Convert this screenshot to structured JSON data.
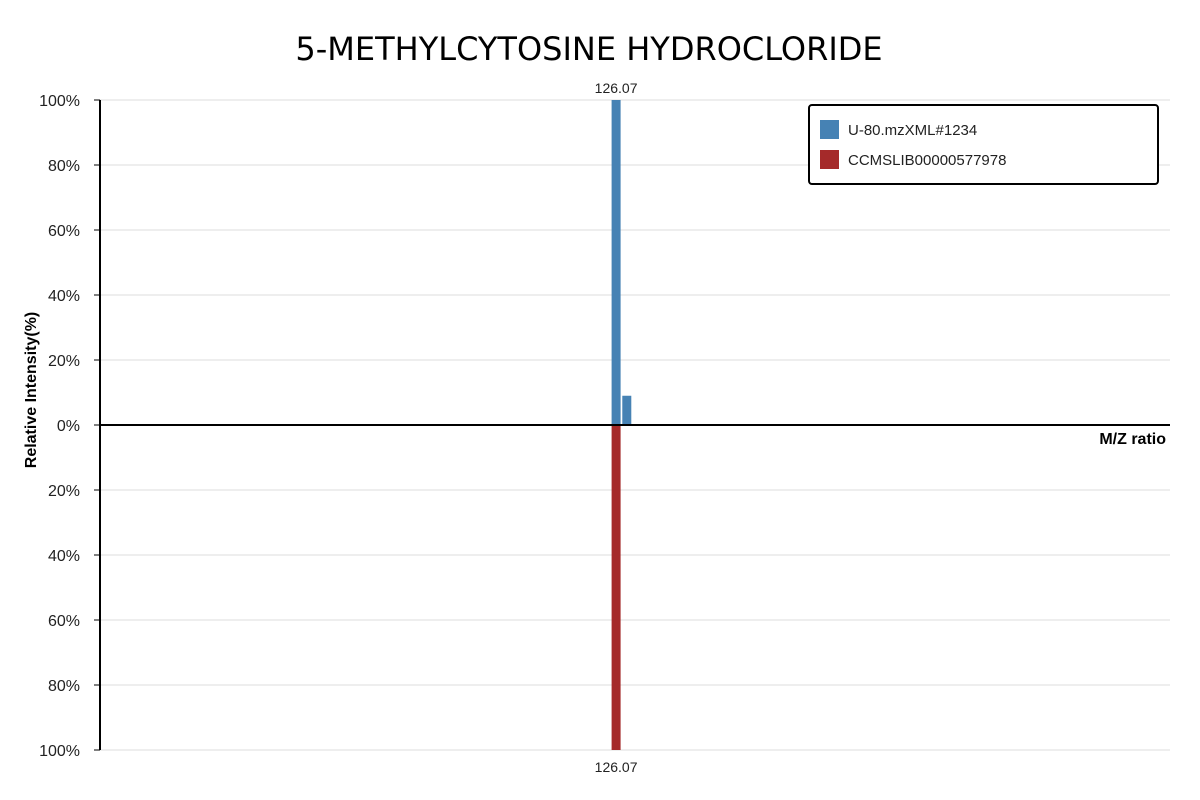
{
  "chart_data": {
    "type": "bar",
    "title": "5-METHYLCYTOSINE HYDROCLORIDE",
    "xlabel": "M/Z ratio",
    "ylabel": "Relative Intensity(%)",
    "ylim": [
      -100,
      100
    ],
    "y_ticks": [
      "100%",
      "80%",
      "60%",
      "40%",
      "20%",
      "0%",
      "20%",
      "40%",
      "60%",
      "80%",
      "100%"
    ],
    "y_tick_values": [
      100,
      80,
      60,
      40,
      20,
      0,
      -20,
      -40,
      -60,
      -80,
      -100
    ],
    "xlim": [
      111.6,
      141.6
    ],
    "grid": true,
    "legend_position": "top-right",
    "series": [
      {
        "name": "U-80.mzXML#1234",
        "color": "#4682b4",
        "direction": "up",
        "peaks": [
          {
            "mz": 126.07,
            "intensity": 100,
            "label": "126.07"
          },
          {
            "mz": 126.37,
            "intensity": 9,
            "label": ""
          }
        ]
      },
      {
        "name": "CCMSLIB00000577978",
        "color": "#a52a2a",
        "direction": "down",
        "peaks": [
          {
            "mz": 126.07,
            "intensity": 100,
            "label": "126.07"
          }
        ]
      }
    ]
  }
}
